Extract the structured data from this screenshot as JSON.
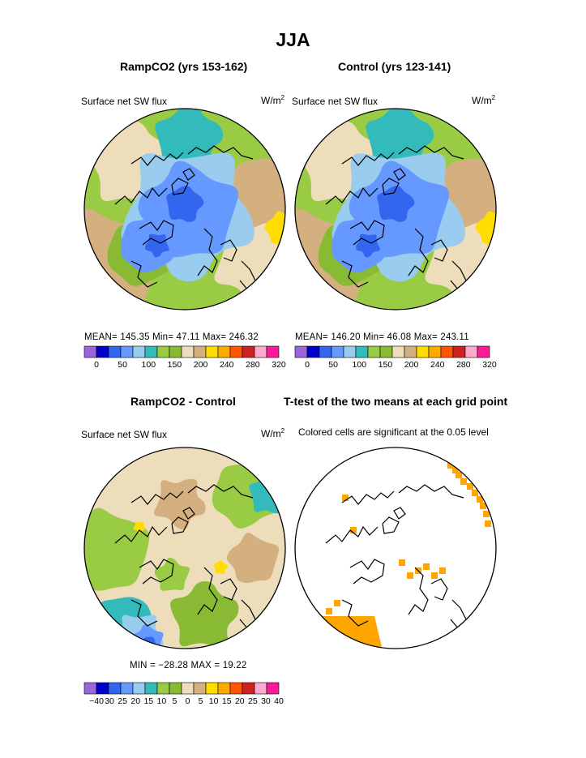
{
  "title": "JJA",
  "panels": [
    {
      "title": "RampCO2 (yrs 153-162)",
      "subtitle": "Surface net SW flux",
      "units_base": "W/m",
      "units_exp": "2",
      "stats": "MEAN= 145.35   Min= 47.11   Max= 246.32"
    },
    {
      "title": "Control (yrs 123-141)",
      "subtitle": "Surface net SW flux",
      "units_base": "W/m",
      "units_exp": "2",
      "stats": "MEAN= 146.20   Min= 46.08   Max= 243.11"
    },
    {
      "title": "RampCO2 - Control",
      "subtitle": "Surface net SW flux",
      "units_base": "W/m",
      "units_exp": "2",
      "stats": "MIN = −28.28  MAX = 19.22"
    },
    {
      "title": "T-test of the two means at each grid point",
      "subtitle": "Colored cells are significant at the 0.05 level"
    }
  ],
  "chart_data": [
    {
      "type": "heatmap",
      "projection": "north-polar-stereographic",
      "title": "RampCO2 (yrs 153-162)",
      "variable": "Surface net SW flux",
      "units": "W/m2",
      "stats": {
        "mean": 145.35,
        "min": 47.11,
        "max": 246.32
      },
      "colorbar": {
        "labels": [
          "0",
          "50",
          "100",
          "150",
          "200",
          "240",
          "280",
          "320"
        ],
        "colors": [
          "#9966dd",
          "#0000cc",
          "#3366ee",
          "#6699ff",
          "#99ccee",
          "#33bbbb",
          "#99cc44",
          "#88bb33",
          "#eeddbb",
          "#d4b080",
          "#ffdd00",
          "#ffaa00",
          "#ff5500",
          "#cc2222",
          "#ffaacc",
          "#ff1a99"
        ]
      }
    },
    {
      "type": "heatmap",
      "projection": "north-polar-stereographic",
      "title": "Control (yrs 123-141)",
      "variable": "Surface net SW flux",
      "units": "W/m2",
      "stats": {
        "mean": 146.2,
        "min": 46.08,
        "max": 243.11
      },
      "colorbar": {
        "labels": [
          "0",
          "50",
          "100",
          "150",
          "200",
          "240",
          "280",
          "320"
        ],
        "colors": [
          "#9966dd",
          "#0000cc",
          "#3366ee",
          "#6699ff",
          "#99ccee",
          "#33bbbb",
          "#99cc44",
          "#88bb33",
          "#eeddbb",
          "#d4b080",
          "#ffdd00",
          "#ffaa00",
          "#ff5500",
          "#cc2222",
          "#ffaacc",
          "#ff1a99"
        ]
      }
    },
    {
      "type": "heatmap",
      "projection": "north-polar-stereographic",
      "title": "RampCO2 - Control",
      "variable": "Surface net SW flux",
      "units": "W/m2",
      "stats": {
        "min": -28.28,
        "max": 19.22
      },
      "colorbar": {
        "labels": [
          "−40",
          "30",
          "25",
          "20",
          "15",
          "10",
          "5",
          "0",
          "5",
          "10",
          "15",
          "20",
          "25",
          "30",
          "40"
        ],
        "colors": [
          "#9966dd",
          "#0000cc",
          "#3366ee",
          "#6699ff",
          "#99ccee",
          "#33bbbb",
          "#99cc44",
          "#88bb33",
          "#eeddbb",
          "#d4b080",
          "#ffdd00",
          "#ffaa00",
          "#ff5500",
          "#cc2222",
          "#ffaacc",
          "#ff1a99"
        ]
      }
    },
    {
      "type": "heatmap",
      "projection": "north-polar-stereographic",
      "title": "T-test of the two means at each grid point",
      "note": "Colored cells are significant at the 0.05 level",
      "significant_color": "#ffa500"
    }
  ]
}
